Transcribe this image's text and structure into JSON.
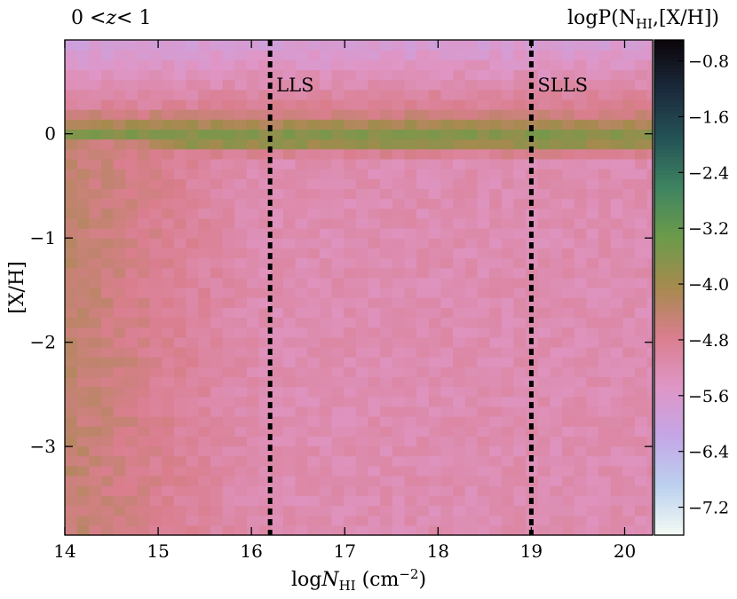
{
  "chart_data": {
    "type": "heatmap",
    "title_left": "0 < z < 1",
    "title_left_parts": [
      "0",
      "<",
      "z",
      "<",
      "1"
    ],
    "colorbar_title": "logP(N_HI,[X/H])",
    "colorbar_title_parts": [
      "logP(N",
      "HI",
      ",[X/H])"
    ],
    "xlabel": "log N_HI (cm^-2)",
    "xlabel_parts": [
      "log",
      "N",
      "HI",
      " (cm",
      "−2",
      ")"
    ],
    "ylabel": "[X/H]",
    "xlim": [
      14,
      20.3
    ],
    "ylim": [
      -3.85,
      0.9
    ],
    "xticks": [
      14,
      15,
      16,
      17,
      18,
      19,
      20
    ],
    "xtick_labels": [
      "14",
      "15",
      "16",
      "17",
      "18",
      "19",
      "20"
    ],
    "yticks": [
      0,
      -1,
      -2,
      -3
    ],
    "ytick_labels": [
      "0",
      "−1",
      "−2",
      "−3"
    ],
    "colorbar_range": [
      -7.6,
      -0.5
    ],
    "colorbar_ticks": [
      -0.8,
      -1.6,
      -2.4,
      -3.2,
      -4.0,
      -4.8,
      -5.6,
      -6.4,
      -7.2
    ],
    "colorbar_tick_labels": [
      "−0.8",
      "−1.6",
      "−2.4",
      "−3.2",
      "−4.0",
      "−4.8",
      "−5.6",
      "−6.4",
      "−7.2"
    ],
    "colormap": [
      "#f4fbf4",
      "#bcd0ef",
      "#c4a6e6",
      "#df96c6",
      "#da7e8e",
      "#a68a4e",
      "#6d9b4a",
      "#3f8561",
      "#245356",
      "#1b2a3c",
      "#0b0509"
    ],
    "vlines": [
      {
        "x": 16.2,
        "label": "LLS"
      },
      {
        "x": 19.0,
        "label": "SLLS"
      }
    ],
    "grid": false
  }
}
